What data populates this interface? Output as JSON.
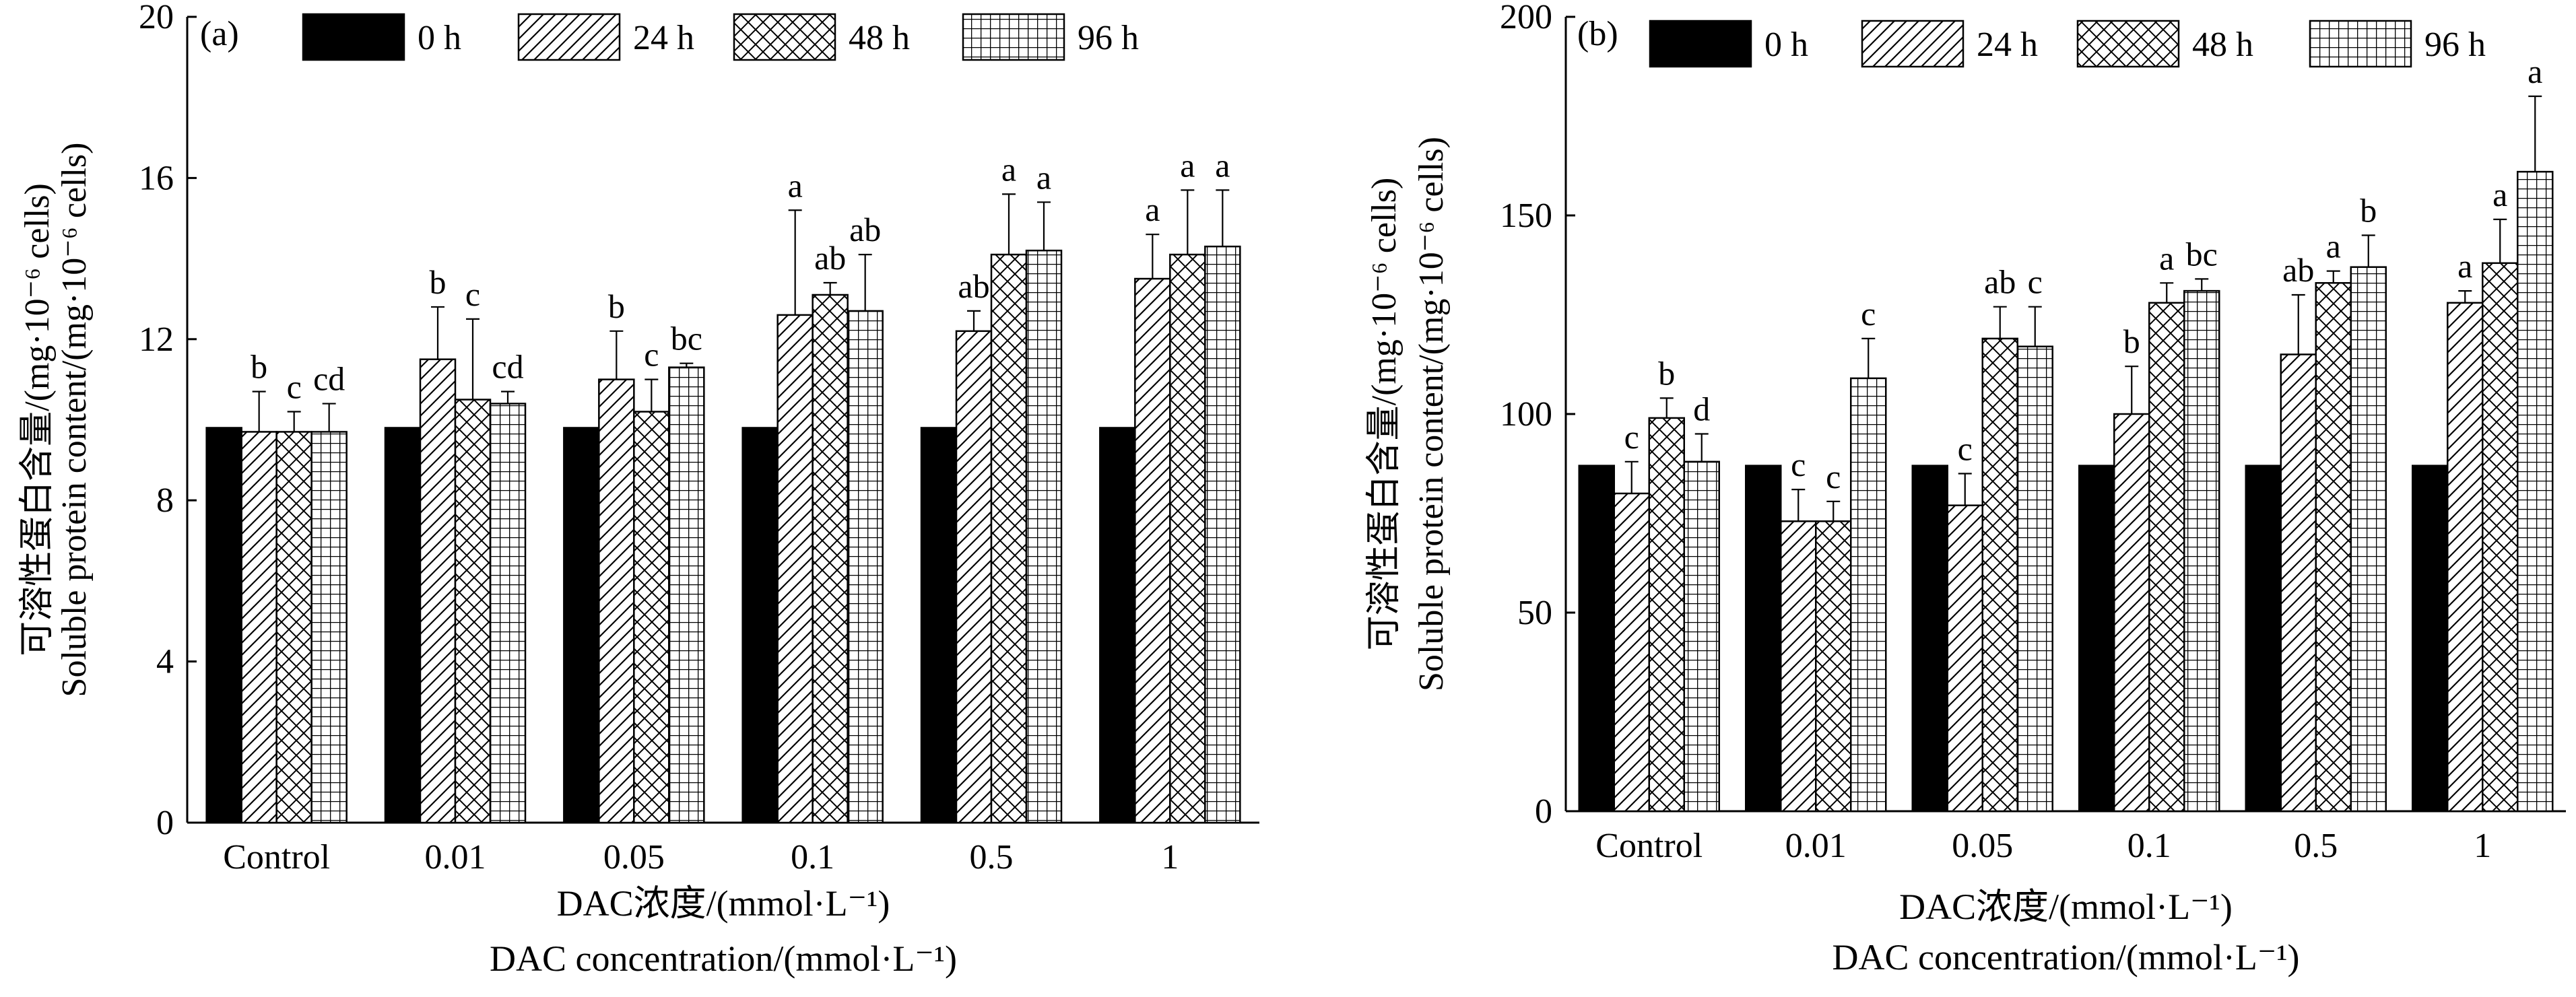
{
  "figure": {
    "colors": {
      "ink": "#000000",
      "background": "#ffffff",
      "solid_fill": "#000000"
    },
    "patterns": [
      "solid",
      "diagonal-hatch",
      "cross-hatch",
      "grid"
    ]
  },
  "chart_data": [
    {
      "type": "bar",
      "panel_label": "(a)",
      "ylabel_cn": "可溶性蛋白含量/(mg·10⁻⁶ cells)",
      "ylabel_en": "Soluble protein content/(mg·10⁻⁶ cells)",
      "xlabel_cn": "DAC浓度/(mmol·L⁻¹)",
      "xlabel_en": "DAC concentration/(mmol·L⁻¹)",
      "categories": [
        "Control",
        "0.01",
        "0.05",
        "0.1",
        "0.5",
        "1"
      ],
      "ylim": [
        0,
        20
      ],
      "yticks": [
        0,
        4,
        8,
        12,
        16,
        20
      ],
      "ytick_labels": [
        "0",
        "4",
        "8",
        "12",
        "16",
        "20"
      ],
      "legend_position": "top",
      "series": [
        {
          "name": "0 h",
          "pattern": "solid",
          "values": [
            9.8,
            9.8,
            9.8,
            9.8,
            9.8,
            9.8
          ],
          "errors": [
            0,
            0,
            0,
            0,
            0,
            0
          ],
          "letters": [
            "",
            "",
            "",
            "",
            "",
            ""
          ]
        },
        {
          "name": "24 h",
          "pattern": "diagonal-hatch",
          "values": [
            9.7,
            11.5,
            11.0,
            12.6,
            12.2,
            13.5
          ],
          "errors": [
            1.0,
            1.3,
            1.2,
            2.6,
            0.5,
            1.1
          ],
          "letters": [
            "b",
            "b",
            "b",
            "a",
            "ab",
            "a"
          ]
        },
        {
          "name": "48 h",
          "pattern": "cross-hatch",
          "values": [
            9.7,
            10.5,
            10.2,
            13.1,
            14.1,
            14.1
          ],
          "errors": [
            0.5,
            2.0,
            0.8,
            0.3,
            1.5,
            1.6
          ],
          "letters": [
            "c",
            "c",
            "c",
            "ab",
            "a",
            "a"
          ]
        },
        {
          "name": "96 h",
          "pattern": "grid",
          "values": [
            9.7,
            10.4,
            11.3,
            12.7,
            14.2,
            14.3
          ],
          "errors": [
            0.7,
            0.3,
            0.1,
            1.4,
            1.2,
            1.4
          ],
          "letters": [
            "cd",
            "cd",
            "bc",
            "ab",
            "a",
            "a"
          ]
        }
      ]
    },
    {
      "type": "bar",
      "panel_label": "(b)",
      "ylabel_cn": "可溶性蛋白含量/(mg·10⁻⁶ cells)",
      "ylabel_en": "Soluble protein content/(mg·10⁻⁶ cells)",
      "xlabel_cn": "DAC浓度/(mmol·L⁻¹)",
      "xlabel_en": "DAC concentration/(mmol·L⁻¹)",
      "categories": [
        "Control",
        "0.01",
        "0.05",
        "0.1",
        "0.5",
        "1"
      ],
      "ylim": [
        0,
        200
      ],
      "yticks": [
        0,
        50,
        100,
        150,
        200
      ],
      "ytick_labels": [
        "0",
        "50",
        "100",
        "150",
        "200"
      ],
      "legend_position": "top",
      "series": [
        {
          "name": "0 h",
          "pattern": "solid",
          "values": [
            87,
            87,
            87,
            87,
            87,
            87
          ],
          "errors": [
            0,
            0,
            0,
            0,
            0,
            0
          ],
          "letters": [
            "",
            "",
            "",
            "",
            "",
            ""
          ]
        },
        {
          "name": "24 h",
          "pattern": "diagonal-hatch",
          "values": [
            80,
            73,
            77,
            100,
            115,
            128
          ],
          "errors": [
            8,
            8,
            8,
            12,
            15,
            3
          ],
          "letters": [
            "c",
            "c",
            "c",
            "b",
            "ab",
            "a"
          ]
        },
        {
          "name": "48 h",
          "pattern": "cross-hatch",
          "values": [
            99,
            73,
            119,
            128,
            133,
            138
          ],
          "errors": [
            5,
            5,
            8,
            5,
            3,
            11
          ],
          "letters": [
            "b",
            "c",
            "ab",
            "a",
            "a",
            "a"
          ]
        },
        {
          "name": "96 h",
          "pattern": "grid",
          "values": [
            88,
            109,
            117,
            131,
            137,
            161
          ],
          "errors": [
            7,
            10,
            10,
            3,
            8,
            19
          ],
          "letters": [
            "d",
            "c",
            "c",
            "bc",
            "b",
            "a"
          ]
        }
      ]
    }
  ]
}
